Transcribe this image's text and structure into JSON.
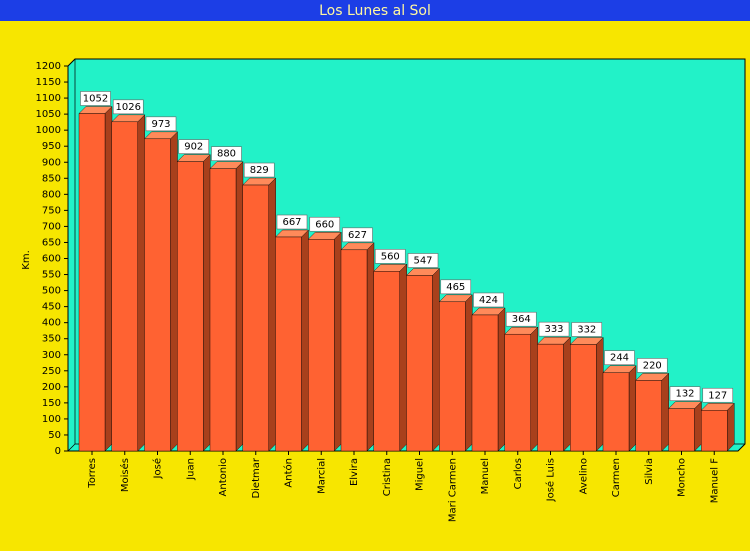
{
  "chart_data": {
    "type": "bar",
    "title": "Los Lunes al Sol",
    "y_label": "Km.",
    "categories": [
      "Torres",
      "Moisés",
      "José",
      "Juan",
      "Antonio",
      "Dietmar",
      "Antón",
      "Marcial",
      "Elvira",
      "Cristina",
      "Miguel",
      "Mari Carmen",
      "Manuel",
      "Carlos",
      "José Luis",
      "Avelino",
      "Carmen",
      "Silvia",
      "Moncho",
      "Manuel F"
    ],
    "values": [
      1052,
      1026,
      973,
      902,
      880,
      829,
      667,
      660,
      627,
      560,
      547,
      465,
      424,
      364,
      333,
      332,
      244,
      220,
      132,
      127
    ],
    "color": "#ff6232",
    "ylim": [
      0,
      1200
    ],
    "yticks": [
      0,
      50,
      100,
      150,
      200,
      250,
      300,
      350,
      400,
      450,
      500,
      550,
      600,
      650,
      700,
      750,
      800,
      850,
      900,
      950,
      1000,
      1050,
      1100,
      1150,
      1200
    ],
    "grid": false
  }
}
